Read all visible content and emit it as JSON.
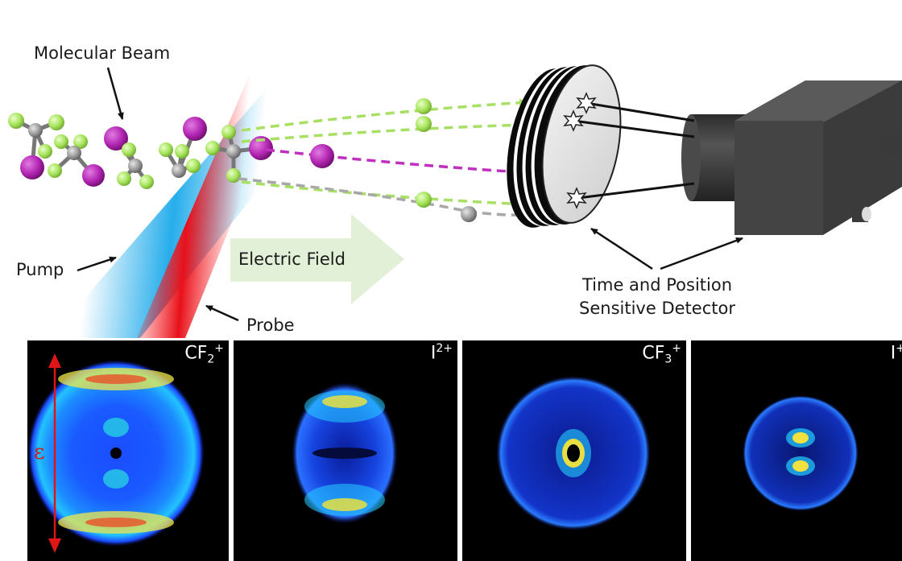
{
  "labels": {
    "molecular_beam": "Molecular Beam",
    "pump": "Pump",
    "probe": "Probe",
    "electric_field": "Electric Field",
    "detector_line1": "Time and Position",
    "detector_line2": "Sensitive Detector"
  },
  "panels": [
    {
      "base": "CF",
      "sub": "2",
      "sup": "+"
    },
    {
      "base": "I",
      "sub": "",
      "sup": "2+"
    },
    {
      "base": "CF",
      "sub": "3",
      "sup": "+"
    },
    {
      "base": "I",
      "sub": "",
      "sup": "+"
    }
  ],
  "polarization_symbol": "ε",
  "colors": {
    "fluorine": "#a6e35a",
    "iodine": "#b326b3",
    "carbon": "#9a9a9a",
    "pump_beam": "#1aa9ea",
    "probe_beam": "#e8101a",
    "field_arrow": "#e3f0d8",
    "detector_body": "#3d3d3d"
  }
}
